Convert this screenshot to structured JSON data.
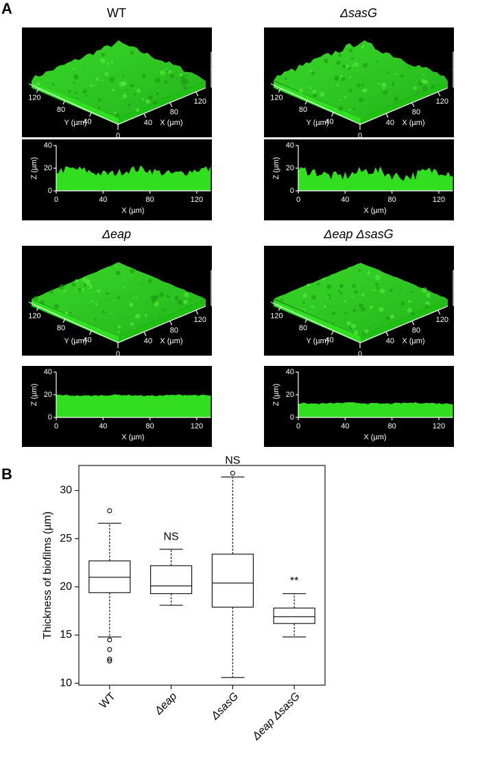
{
  "panel_a": {
    "label": "A",
    "panels": [
      {
        "title": "WT"
      },
      {
        "title": "ΔsasG"
      },
      {
        "title": "Δeap"
      },
      {
        "title": "Δeap ΔsasG"
      }
    ],
    "axes": {
      "z_label": "Z (µm)",
      "x_label": "X (µm)",
      "y_label": "Y (µm)",
      "z_ticks": [
        0,
        20,
        40
      ],
      "xy_ticks": [
        40,
        80,
        120
      ],
      "origin": 0,
      "x_ticks": [
        0,
        40,
        80,
        120
      ]
    }
  },
  "chart_data": {
    "type": "box",
    "label": "B",
    "ylabel": "Thickness of biofilms (µm)",
    "categories": [
      "WT",
      "Δeap",
      "ΔsasG",
      "Δeap ΔsasG"
    ],
    "boxes": [
      {
        "min": 14.8,
        "q1": 19.4,
        "median": 21.0,
        "q3": 22.7,
        "max": 26.6,
        "outliers": [
          27.9,
          14.5,
          13.5,
          12.5,
          12.3
        ]
      },
      {
        "min": 18.1,
        "q1": 19.3,
        "median": 20.1,
        "q3": 22.2,
        "max": 23.9
      },
      {
        "min": 10.6,
        "q1": 17.9,
        "median": 20.4,
        "q3": 23.4,
        "max": 31.4,
        "outliers": [
          31.8
        ]
      },
      {
        "min": 14.8,
        "q1": 16.2,
        "median": 16.9,
        "q3": 17.8,
        "max": 19.3
      }
    ],
    "significance": [
      null,
      "NS",
      "NS",
      "**"
    ],
    "ylim": [
      9.8,
      32.6
    ],
    "yticks": [
      10,
      15,
      20,
      25,
      30
    ]
  }
}
